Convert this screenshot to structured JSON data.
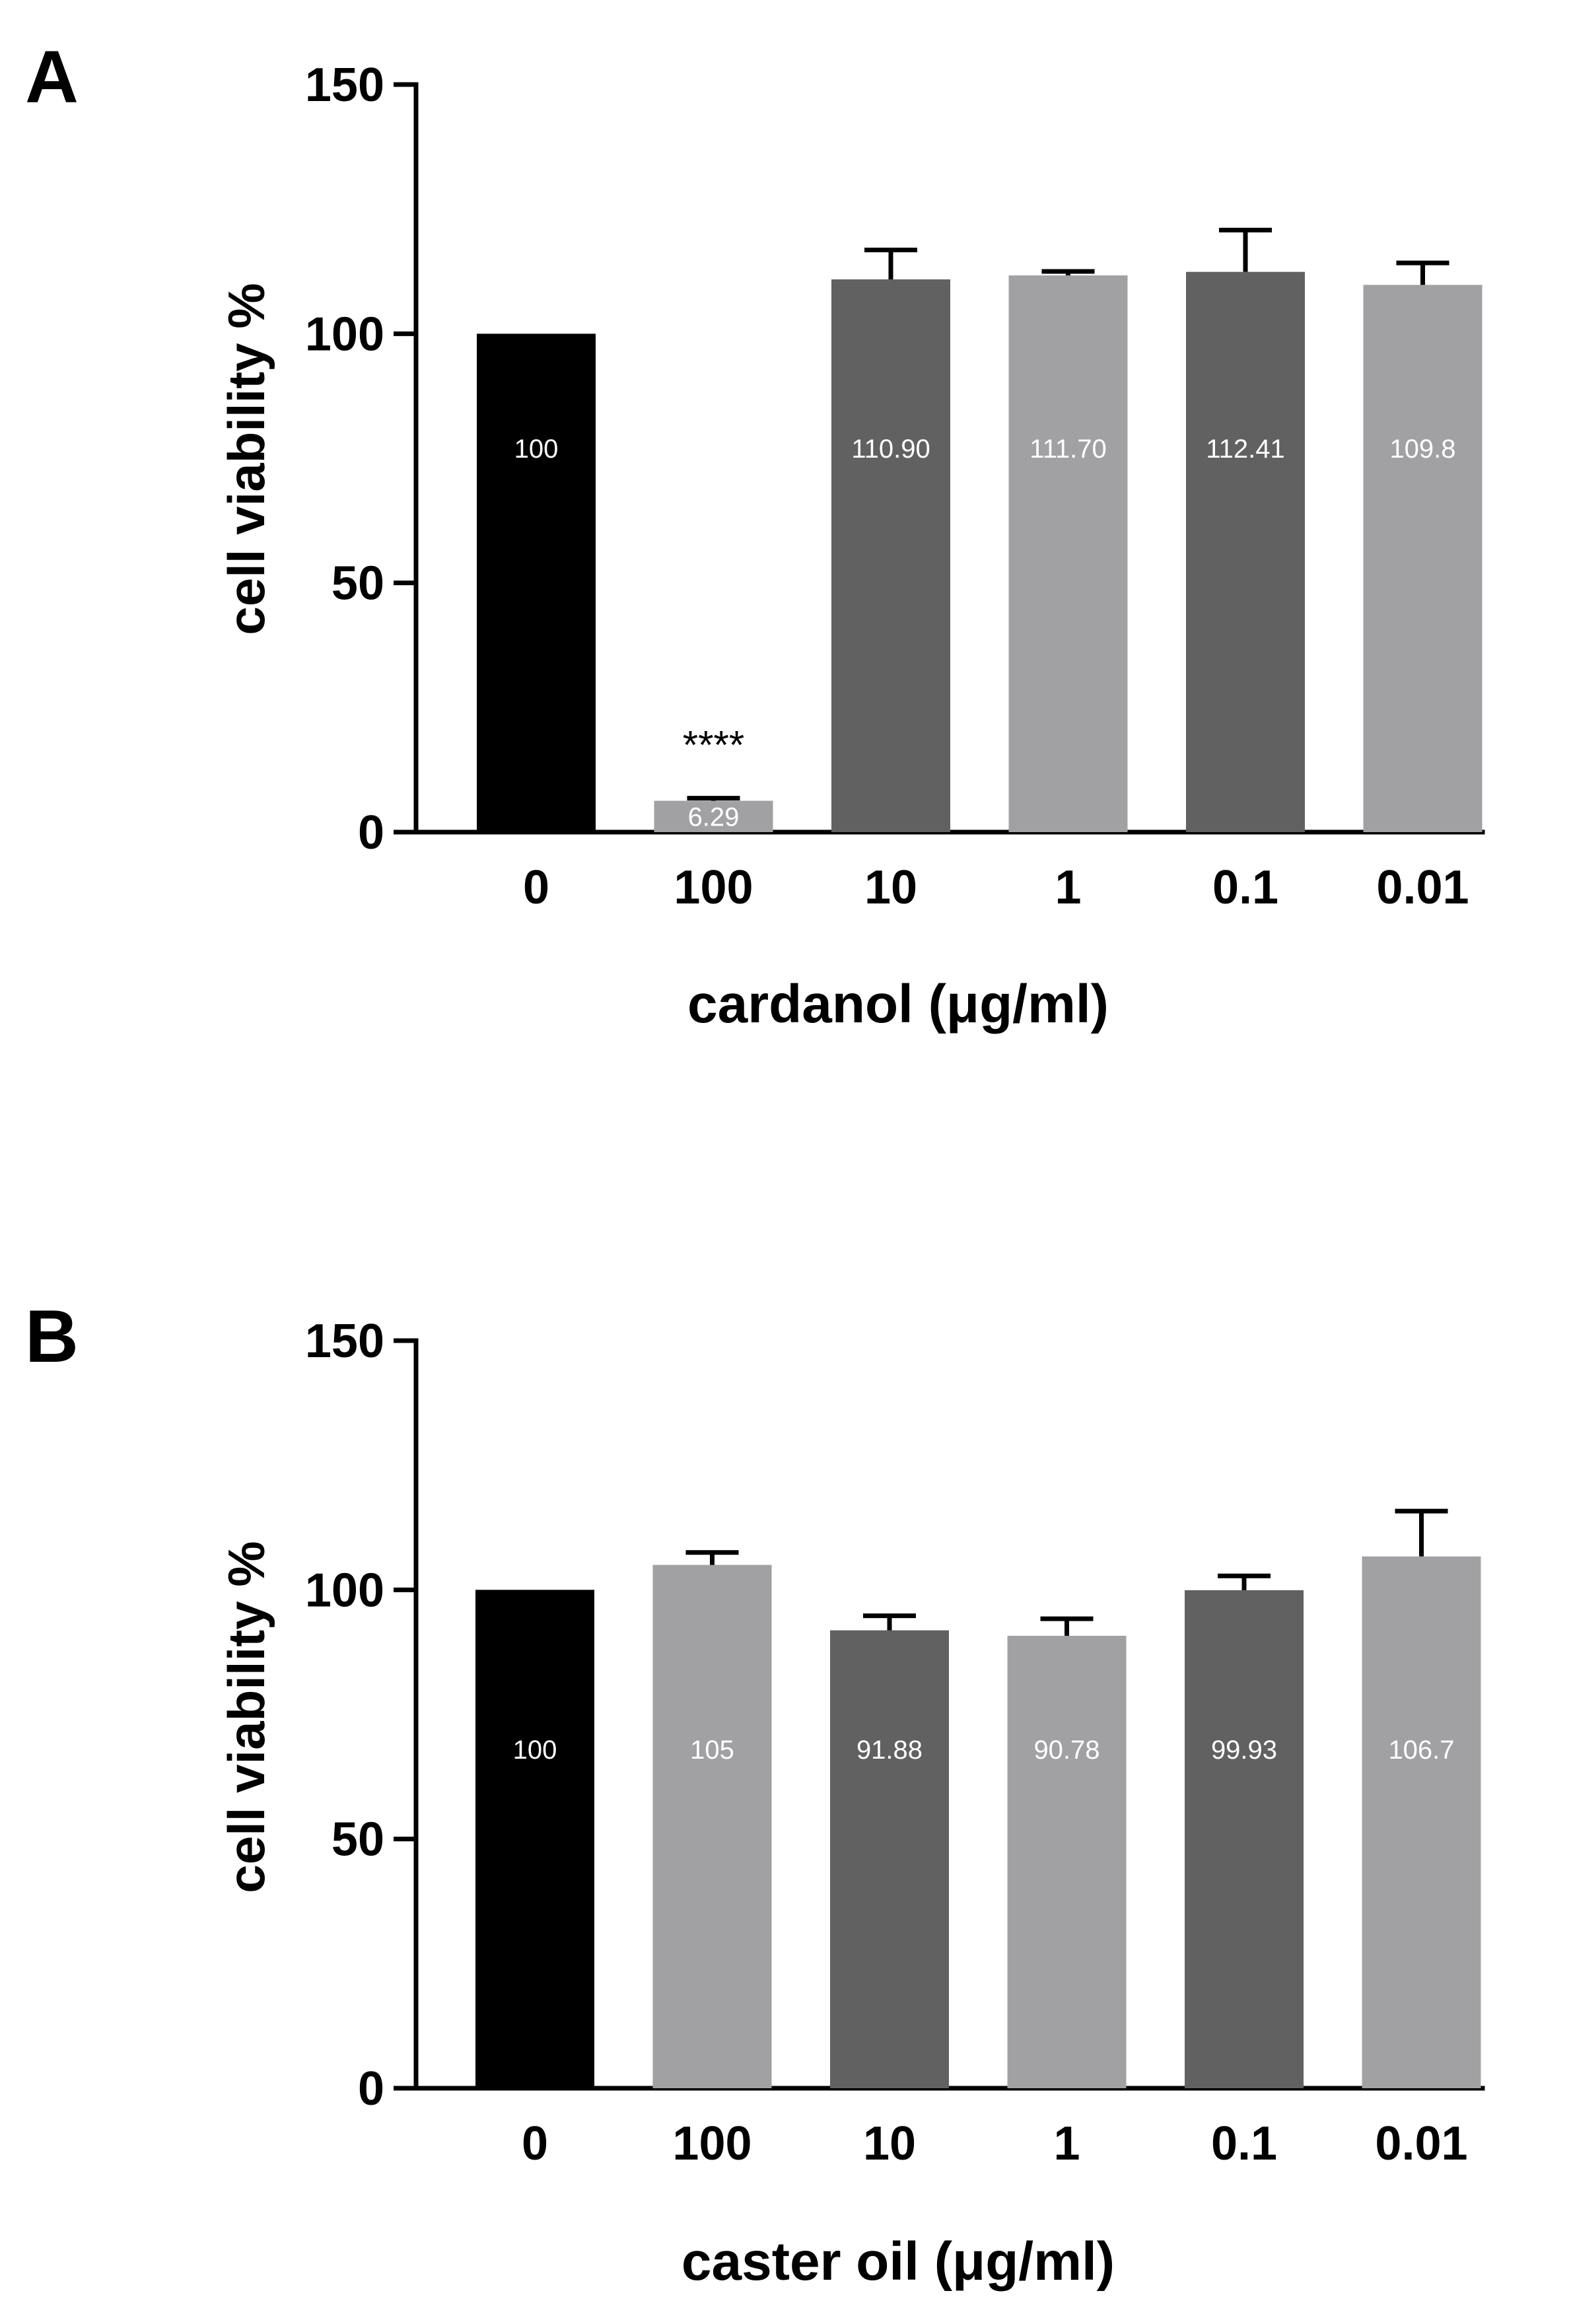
{
  "figure": {
    "panels": [
      {
        "panel_label": "A",
        "chart_index": 0
      },
      {
        "panel_label": "B",
        "chart_index": 1
      }
    ]
  },
  "chart_data": [
    {
      "type": "bar",
      "panel": "A",
      "title": "",
      "xlabel": "cardanol (μg/ml)",
      "ylabel": "cell viability %",
      "ylim": [
        0,
        150
      ],
      "yticks": [
        0,
        50,
        100,
        150
      ],
      "grid": false,
      "categories": [
        "0",
        "100",
        "10",
        "1",
        "0.1",
        "0.01"
      ],
      "values": [
        100,
        6.29,
        110.9,
        111.7,
        112.41,
        109.8
      ],
      "error_upper": [
        null,
        6.8,
        116.8,
        112.5,
        120.8,
        114.2
      ],
      "data_labels": [
        "100",
        "6.29",
        "110.90",
        "111.70",
        "112.41",
        "109.8"
      ],
      "bar_colors": [
        "#000000",
        "#a1a1a4",
        "#616161",
        "#a1a1a4",
        "#616161",
        "#a1a1a4"
      ],
      "annotations": [
        {
          "category": "100",
          "text": "****"
        }
      ]
    },
    {
      "type": "bar",
      "panel": "B",
      "title": "",
      "xlabel": "caster oil (μg/ml)",
      "ylabel": "cell viability %",
      "ylim": [
        0,
        150
      ],
      "yticks": [
        0,
        50,
        100,
        150
      ],
      "grid": false,
      "categories": [
        "0",
        "100",
        "10",
        "1",
        "0.1",
        "0.01"
      ],
      "values": [
        100,
        105,
        91.88,
        90.78,
        99.93,
        106.7
      ],
      "error_upper": [
        null,
        107.5,
        94.8,
        94.2,
        102.8,
        115.8
      ],
      "data_labels": [
        "100",
        "105",
        "91.88",
        "90.78",
        "99.93",
        "106.7"
      ],
      "bar_colors": [
        "#000000",
        "#a1a1a4",
        "#616161",
        "#a1a1a4",
        "#616161",
        "#a1a1a4"
      ],
      "annotations": []
    }
  ]
}
